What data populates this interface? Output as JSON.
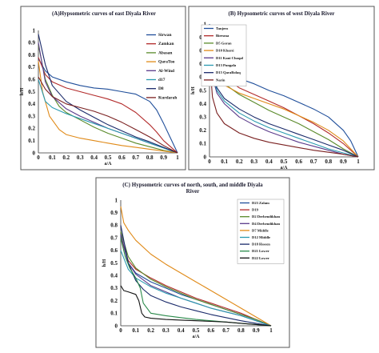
{
  "chart_data": [
    {
      "type": "line",
      "title": "(A)Hypsometric curves of east Diyala River",
      "xlabel": "a/A",
      "ylabel": "h/H",
      "xlim": [
        0,
        1
      ],
      "ylim": [
        0,
        1
      ],
      "xticks": [
        "0",
        "0.1",
        "0.2",
        "0.3",
        "0.4",
        "0.5",
        "0.6",
        "0.7",
        "0.8",
        "0.9",
        "1"
      ],
      "yticks": [
        "0",
        "0.1",
        "0.2",
        "0.3",
        "0.4",
        "0.5",
        "0.6",
        "0.7",
        "0.8",
        "0.9",
        "1"
      ],
      "grid": false,
      "legend_position": "right",
      "series": [
        {
          "name": "Sirwan",
          "color": "#1f4e9a",
          "x": [
            0,
            0.05,
            0.1,
            0.2,
            0.3,
            0.4,
            0.5,
            0.6,
            0.7,
            0.8,
            0.85,
            0.9,
            0.95,
            1
          ],
          "y": [
            0.77,
            0.67,
            0.62,
            0.58,
            0.55,
            0.53,
            0.52,
            0.5,
            0.48,
            0.42,
            0.35,
            0.24,
            0.12,
            0
          ]
        },
        {
          "name": "Zamkan",
          "color": "#b22a2a",
          "x": [
            0,
            0.05,
            0.1,
            0.2,
            0.3,
            0.4,
            0.5,
            0.6,
            0.7,
            0.8,
            0.85,
            0.9,
            0.95,
            1
          ],
          "y": [
            0.78,
            0.64,
            0.58,
            0.53,
            0.5,
            0.47,
            0.44,
            0.4,
            0.33,
            0.23,
            0.17,
            0.1,
            0.05,
            0
          ]
        },
        {
          "name": "Abasan",
          "color": "#5a8a2a",
          "x": [
            0,
            0.05,
            0.1,
            0.15,
            0.2,
            0.3,
            0.4,
            0.5,
            0.6,
            0.7,
            0.8,
            0.9,
            1
          ],
          "y": [
            0.88,
            0.6,
            0.47,
            0.38,
            0.33,
            0.27,
            0.21,
            0.16,
            0.12,
            0.08,
            0.05,
            0.02,
            0
          ]
        },
        {
          "name": "QaraToo",
          "color": "#e08a18",
          "x": [
            0,
            0.03,
            0.08,
            0.15,
            0.2,
            0.3,
            0.4,
            0.5,
            0.6,
            0.7,
            0.8,
            0.9,
            1
          ],
          "y": [
            0.75,
            0.5,
            0.3,
            0.19,
            0.15,
            0.12,
            0.1,
            0.08,
            0.06,
            0.045,
            0.03,
            0.015,
            0
          ]
        },
        {
          "name": "Al-Wind",
          "color": "#5a3a8a",
          "x": [
            0,
            0.05,
            0.1,
            0.2,
            0.3,
            0.4,
            0.5,
            0.6,
            0.7,
            0.8,
            0.9,
            1
          ],
          "y": [
            0.9,
            0.58,
            0.46,
            0.36,
            0.3,
            0.25,
            0.2,
            0.16,
            0.12,
            0.08,
            0.04,
            0
          ]
        },
        {
          "name": "d17",
          "color": "#2a9ab0",
          "x": [
            0,
            0.05,
            0.1,
            0.2,
            0.3,
            0.4,
            0.5,
            0.6,
            0.7,
            0.8,
            0.9,
            1
          ],
          "y": [
            0.6,
            0.42,
            0.37,
            0.32,
            0.28,
            0.24,
            0.2,
            0.16,
            0.12,
            0.08,
            0.04,
            0
          ]
        },
        {
          "name": "D8",
          "color": "#1a2a6a",
          "x": [
            0,
            0.05,
            0.1,
            0.2,
            0.3,
            0.4,
            0.5,
            0.6,
            0.7,
            0.8,
            0.9,
            1
          ],
          "y": [
            0.97,
            0.72,
            0.55,
            0.42,
            0.35,
            0.29,
            0.23,
            0.18,
            0.13,
            0.09,
            0.045,
            0
          ]
        },
        {
          "name": "Kurdarah",
          "color": "#7a2020",
          "x": [
            0,
            0.05,
            0.1,
            0.2,
            0.3,
            0.4,
            0.5,
            0.6,
            0.7,
            0.8,
            0.9,
            1
          ],
          "y": [
            0.62,
            0.52,
            0.46,
            0.4,
            0.37,
            0.34,
            0.3,
            0.25,
            0.19,
            0.13,
            0.06,
            0
          ]
        }
      ]
    },
    {
      "type": "line",
      "title": "(B) Hypsometric curves of west Diyala River",
      "xlabel": "a/A",
      "ylabel": "h/H",
      "xlim": [
        0,
        1
      ],
      "ylim": [
        0,
        1
      ],
      "xticks": [
        "0",
        "0.1",
        "0.2",
        "0.3",
        "0.4",
        "0.5",
        "0.6",
        "0.7",
        "0.8",
        "0.9",
        "1"
      ],
      "yticks": [
        "0",
        "0.1",
        "0.2",
        "0.3",
        "0.4",
        "0.5",
        "0.6",
        "0.7",
        "0.8",
        "0.9",
        "1"
      ],
      "grid": false,
      "legend_position": "top-center",
      "series": [
        {
          "name": "Tanjero",
          "color": "#1f4e9a",
          "x": [
            0,
            0.02,
            0.05,
            0.1,
            0.2,
            0.3,
            0.4,
            0.5,
            0.6,
            0.7,
            0.8,
            0.9,
            0.95,
            1
          ],
          "y": [
            1,
            0.8,
            0.7,
            0.64,
            0.59,
            0.55,
            0.5,
            0.46,
            0.41,
            0.36,
            0.3,
            0.2,
            0.12,
            0
          ]
        },
        {
          "name": "Biresma",
          "color": "#b22a2a",
          "x": [
            0,
            0.02,
            0.05,
            0.1,
            0.2,
            0.3,
            0.4,
            0.5,
            0.6,
            0.7,
            0.8,
            0.9,
            1
          ],
          "y": [
            0.95,
            0.78,
            0.68,
            0.6,
            0.52,
            0.47,
            0.42,
            0.37,
            0.31,
            0.25,
            0.18,
            0.1,
            0
          ]
        },
        {
          "name": "D5 Goran",
          "color": "#5a8a2a",
          "x": [
            0,
            0.02,
            0.05,
            0.1,
            0.2,
            0.3,
            0.4,
            0.5,
            0.6,
            0.7,
            0.8,
            0.9,
            1
          ],
          "y": [
            0.95,
            0.72,
            0.62,
            0.55,
            0.47,
            0.41,
            0.35,
            0.3,
            0.25,
            0.19,
            0.13,
            0.06,
            0
          ]
        },
        {
          "name": "D10 Kharsi",
          "color": "#e08a18",
          "x": [
            0,
            0.02,
            0.05,
            0.1,
            0.2,
            0.3,
            0.4,
            0.5,
            0.6,
            0.7,
            0.8,
            0.9,
            1
          ],
          "y": [
            0.92,
            0.7,
            0.6,
            0.54,
            0.48,
            0.44,
            0.4,
            0.36,
            0.31,
            0.26,
            0.2,
            0.12,
            0
          ]
        },
        {
          "name": "D11 Kani Chaqal",
          "color": "#5a3a8a",
          "x": [
            0,
            0.02,
            0.05,
            0.1,
            0.2,
            0.3,
            0.4,
            0.5,
            0.6,
            0.7,
            0.8,
            0.9,
            1
          ],
          "y": [
            0.95,
            0.6,
            0.48,
            0.4,
            0.3,
            0.24,
            0.19,
            0.15,
            0.11,
            0.08,
            0.05,
            0.02,
            0
          ]
        },
        {
          "name": "D13 Pungala",
          "color": "#2a9ab0",
          "x": [
            0,
            0.02,
            0.05,
            0.1,
            0.2,
            0.3,
            0.4,
            0.5,
            0.6,
            0.7,
            0.8,
            0.9,
            1
          ],
          "y": [
            0.93,
            0.62,
            0.5,
            0.42,
            0.33,
            0.27,
            0.22,
            0.18,
            0.14,
            0.1,
            0.06,
            0.03,
            0
          ]
        },
        {
          "name": "D15 QaraBolaq",
          "color": "#1a2a6a",
          "x": [
            0,
            0.02,
            0.05,
            0.1,
            0.2,
            0.3,
            0.4,
            0.5,
            0.6,
            0.7,
            0.8,
            0.9,
            1
          ],
          "y": [
            0.95,
            0.65,
            0.52,
            0.44,
            0.36,
            0.3,
            0.25,
            0.21,
            0.17,
            0.13,
            0.09,
            0.05,
            0
          ]
        },
        {
          "name": "Narin",
          "color": "#7a2020",
          "x": [
            0,
            0.02,
            0.05,
            0.1,
            0.2,
            0.3,
            0.4,
            0.5,
            0.6,
            0.7,
            0.8,
            0.9,
            1
          ],
          "y": [
            0.75,
            0.45,
            0.33,
            0.25,
            0.18,
            0.14,
            0.11,
            0.09,
            0.07,
            0.05,
            0.035,
            0.02,
            0
          ]
        }
      ]
    },
    {
      "type": "line",
      "title": "(C) Hypsometric curves of north, south, and middle Diyala River",
      "xlabel": "a/A",
      "ylabel": "h/H",
      "xlim": [
        0,
        1
      ],
      "ylim": [
        0,
        1
      ],
      "xticks": [
        "0",
        "0.1",
        "0.2",
        "0.3",
        "0.4",
        "0.5",
        "0.6",
        "0.7",
        "0.8",
        "0.9",
        "1"
      ],
      "yticks": [
        "0",
        "0.1",
        "0.2",
        "0.3",
        "0.4",
        "0.5",
        "0.6",
        "0.7",
        "0.8",
        "0.9",
        "1"
      ],
      "grid": false,
      "legend_position": "right",
      "series": [
        {
          "name": "D23 Zalam",
          "color": "#1f4e9a",
          "x": [
            0,
            0.05,
            0.1,
            0.2,
            0.3,
            0.4,
            0.5,
            0.6,
            0.7,
            0.8,
            0.9,
            1
          ],
          "y": [
            0.72,
            0.5,
            0.42,
            0.35,
            0.3,
            0.25,
            0.21,
            0.17,
            0.13,
            0.09,
            0.05,
            0
          ]
        },
        {
          "name": "D19",
          "color": "#b22a2a",
          "x": [
            0,
            0.05,
            0.1,
            0.2,
            0.3,
            0.4,
            0.5,
            0.6,
            0.7,
            0.8,
            0.9,
            1
          ],
          "y": [
            0.7,
            0.52,
            0.45,
            0.38,
            0.32,
            0.27,
            0.22,
            0.18,
            0.14,
            0.1,
            0.05,
            0
          ]
        },
        {
          "name": "D2 Derbendikhan",
          "color": "#5a8a2a",
          "x": [
            0,
            0.05,
            0.1,
            0.2,
            0.3,
            0.4,
            0.5,
            0.6,
            0.7,
            0.8,
            0.9,
            1
          ],
          "y": [
            0.75,
            0.55,
            0.46,
            0.37,
            0.31,
            0.26,
            0.21,
            0.17,
            0.13,
            0.09,
            0.05,
            0
          ]
        },
        {
          "name": "D4 Derbendikhan",
          "color": "#5a3a8a",
          "x": [
            0,
            0.05,
            0.1,
            0.2,
            0.3,
            0.4,
            0.5,
            0.6,
            0.7,
            0.8,
            0.9,
            1
          ],
          "y": [
            0.73,
            0.5,
            0.41,
            0.32,
            0.27,
            0.22,
            0.18,
            0.14,
            0.11,
            0.08,
            0.04,
            0
          ]
        },
        {
          "name": "D7 Middle",
          "color": "#e08a18",
          "x": [
            0,
            0.02,
            0.05,
            0.1,
            0.2,
            0.3,
            0.4,
            0.5,
            0.6,
            0.7,
            0.8,
            0.9,
            1
          ],
          "y": [
            0.95,
            0.82,
            0.76,
            0.68,
            0.57,
            0.49,
            0.42,
            0.35,
            0.28,
            0.21,
            0.14,
            0.07,
            0
          ]
        },
        {
          "name": "D12 Middle",
          "color": "#2a9ab0",
          "x": [
            0,
            0.05,
            0.1,
            0.2,
            0.3,
            0.4,
            0.5,
            0.6,
            0.7,
            0.8,
            0.9,
            1
          ],
          "y": [
            0.6,
            0.45,
            0.38,
            0.31,
            0.26,
            0.22,
            0.18,
            0.14,
            0.11,
            0.08,
            0.04,
            0
          ]
        },
        {
          "name": "D18 Hsseen",
          "color": "#1a2a6a",
          "x": [
            0,
            0.05,
            0.1,
            0.15,
            0.2,
            0.3,
            0.4,
            0.5,
            0.6,
            0.7,
            0.8,
            0.9,
            1
          ],
          "y": [
            0.8,
            0.5,
            0.36,
            0.29,
            0.24,
            0.19,
            0.15,
            0.12,
            0.09,
            0.065,
            0.04,
            0.02,
            0
          ]
        },
        {
          "name": "D21 Lower",
          "color": "#2a8a4a",
          "x": [
            0,
            0.03,
            0.06,
            0.1,
            0.13,
            0.15,
            0.2,
            0.3,
            0.4,
            0.5,
            0.6,
            0.7,
            0.8,
            0.9,
            1
          ],
          "y": [
            0.7,
            0.55,
            0.46,
            0.38,
            0.3,
            0.18,
            0.1,
            0.08,
            0.065,
            0.05,
            0.04,
            0.03,
            0.02,
            0.01,
            0
          ]
        },
        {
          "name": "D22 Lower",
          "color": "#111111",
          "x": [
            0,
            0.02,
            0.05,
            0.1,
            0.12,
            0.14,
            0.16,
            0.2,
            0.3,
            0.4,
            0.5,
            0.6,
            0.7,
            0.8,
            0.9,
            1
          ],
          "y": [
            0.32,
            0.28,
            0.27,
            0.25,
            0.2,
            0.1,
            0.07,
            0.06,
            0.05,
            0.045,
            0.04,
            0.035,
            0.03,
            0.02,
            0.01,
            0
          ]
        }
      ]
    }
  ]
}
